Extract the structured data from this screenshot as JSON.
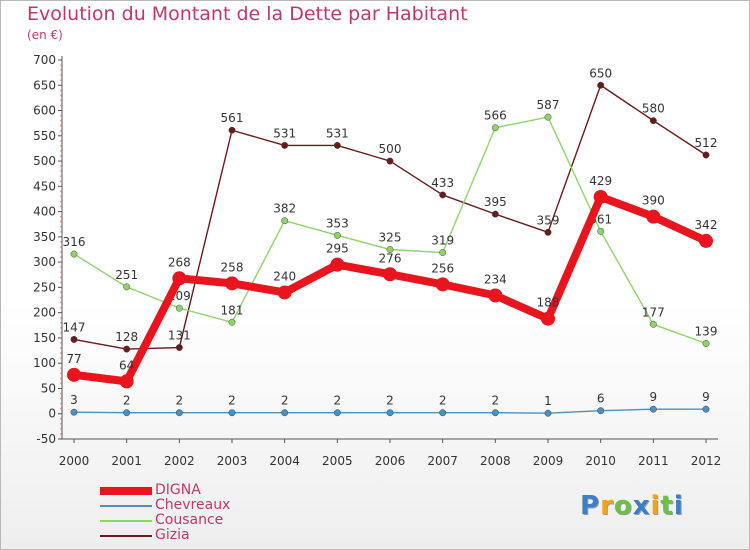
{
  "title": "Evolution du Montant de la Dette par Habitant",
  "subtitle": "(en €)",
  "chart_data": {
    "type": "line",
    "x": [
      "2000",
      "2001",
      "2002",
      "2003",
      "2004",
      "2005",
      "2006",
      "2007",
      "2008",
      "2009",
      "2010",
      "2011",
      "2012"
    ],
    "ylim": [
      -50,
      700
    ],
    "yticks": [
      -50,
      0,
      50,
      100,
      150,
      200,
      250,
      300,
      350,
      400,
      450,
      500,
      550,
      600,
      650,
      700
    ],
    "grid": false,
    "legend_position": "bottom-left",
    "series": [
      {
        "name": "Gizia",
        "color": "#6b1a1a",
        "values": [
          147,
          128,
          131,
          561,
          531,
          531,
          500,
          433,
          395,
          359,
          650,
          580,
          512
        ]
      },
      {
        "name": "Cousance",
        "color": "#8fd46a",
        "values": [
          316,
          251,
          209,
          181,
          382,
          353,
          325,
          319,
          566,
          587,
          361,
          177,
          139
        ]
      },
      {
        "name": "Chevreaux",
        "color": "#4a90c0",
        "values": [
          3,
          2,
          2,
          2,
          2,
          2,
          2,
          2,
          2,
          1,
          6,
          9,
          9
        ]
      },
      {
        "name": "DIGNA",
        "color": "#e8141e",
        "values": [
          77,
          64,
          268,
          258,
          240,
          295,
          276,
          256,
          234,
          188,
          429,
          390,
          342
        ]
      }
    ],
    "legend_order": [
      "DIGNA",
      "Chevreaux",
      "Cousance",
      "Gizia"
    ]
  },
  "logo": {
    "letters": [
      "P",
      "r",
      "o",
      "x",
      "i",
      "t",
      "i"
    ],
    "colors": [
      "#3a7fc8",
      "#f2a21b",
      "#6cc04a",
      "#3a7fc8",
      "#f2a21b",
      "#6cc04a",
      "#3a7fc8"
    ]
  }
}
